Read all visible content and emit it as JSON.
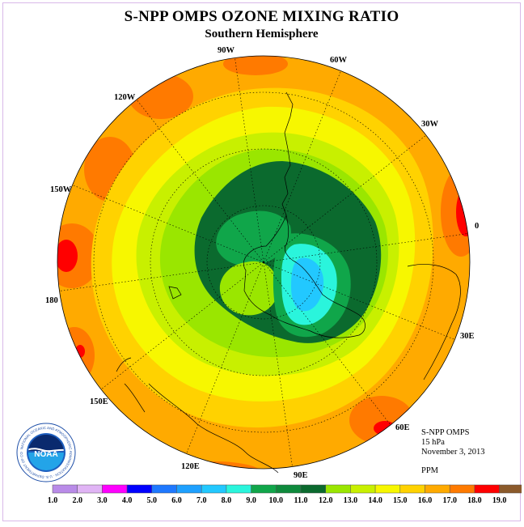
{
  "title": "S-NPP OMPS OZONE MIXING RATIO",
  "subtitle": "Southern Hemisphere",
  "longitude_labels": [
    {
      "lon": "90W",
      "id": "90w"
    },
    {
      "lon": "60W",
      "id": "60w"
    },
    {
      "lon": "120W",
      "id": "120w"
    },
    {
      "lon": "30W",
      "id": "30w"
    },
    {
      "lon": "150W",
      "id": "150w"
    },
    {
      "lon": "0",
      "id": "0"
    },
    {
      "lon": "180",
      "id": "180"
    },
    {
      "lon": "30E",
      "id": "30e"
    },
    {
      "lon": "150E",
      "id": "150e"
    },
    {
      "lon": "60E",
      "id": "60e"
    },
    {
      "lon": "120E",
      "id": "120e"
    },
    {
      "lon": "90E",
      "id": "90e"
    }
  ],
  "info": {
    "instrument": "S-NPP OMPS",
    "level": "15 hPa",
    "date": "November 3, 2013",
    "units": "PPM"
  },
  "logo": {
    "text": "NOAA",
    "ring_text": "NATIONAL OCEANIC AND ATMOSPHERIC ADMINISTRATION · U.S. DEPARTMENT OF COMMERCE"
  },
  "colorbar": {
    "labels": [
      "1.0",
      "2.0",
      "3.0",
      "4.0",
      "5.0",
      "6.0",
      "7.0",
      "8.0",
      "9.0",
      "10.0",
      "11.0",
      "12.0",
      "13.0",
      "14.0",
      "15.0",
      "16.0",
      "17.0",
      "18.0",
      "19.0"
    ],
    "colors": [
      "#b98be8",
      "#e0b4f5",
      "#ff00ff",
      "#0000ff",
      "#1e78ff",
      "#1ea0ff",
      "#22c8ff",
      "#2af5dc",
      "#10a64a",
      "#0e8a3c",
      "#0b6a2e",
      "#9ae600",
      "#c8f000",
      "#f7f700",
      "#ffd200",
      "#ffaa00",
      "#ff7a00",
      "#ff0000",
      "#8b5a2b"
    ]
  }
}
